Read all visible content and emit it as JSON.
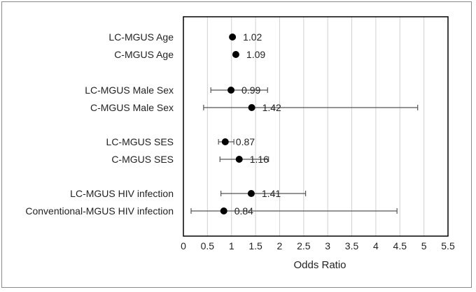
{
  "chart_data": {
    "type": "scatter",
    "subtype": "forest-plot",
    "xlabel": "Odds Ratio",
    "xlim": [
      0,
      5.5
    ],
    "xticks": [
      0,
      0.5,
      1,
      1.5,
      2,
      2.5,
      3,
      3.5,
      4,
      4.5,
      5,
      5.5
    ],
    "xtick_labels": [
      "0",
      "0.5",
      "1",
      "1.5",
      "2",
      "2.5",
      "3",
      "3.5",
      "4",
      "4.5",
      "5",
      "5.5"
    ],
    "grid": "vertical",
    "rows": [
      {
        "label": "LC-MGUS Age",
        "value": 1.02,
        "value_label": "1.02",
        "ci": null
      },
      {
        "label": "C-MGUS Age",
        "value": 1.09,
        "value_label": "1.09",
        "ci": null
      },
      {
        "label": "LC-MGUS Male Sex",
        "value": 0.99,
        "value_label": "0.99",
        "ci": [
          0.57,
          1.75
        ]
      },
      {
        "label": "C-MGUS Male Sex",
        "value": 1.42,
        "value_label": "1.42",
        "ci": [
          0.42,
          4.87
        ]
      },
      {
        "label": "LC-MGUS SES",
        "value": 0.87,
        "value_label": "0.87",
        "ci": [
          0.73,
          1.05
        ]
      },
      {
        "label": "C-MGUS SES",
        "value": 1.16,
        "value_label": "1.16",
        "ci": [
          0.76,
          1.77
        ]
      },
      {
        "label": "LC-MGUS HIV infection",
        "value": 1.41,
        "value_label": "1.41",
        "ci": [
          0.78,
          2.54
        ]
      },
      {
        "label": "Conventional-MGUS HIV infection",
        "value": 0.84,
        "value_label": "0.84",
        "ci": [
          0.16,
          4.44
        ]
      }
    ]
  }
}
